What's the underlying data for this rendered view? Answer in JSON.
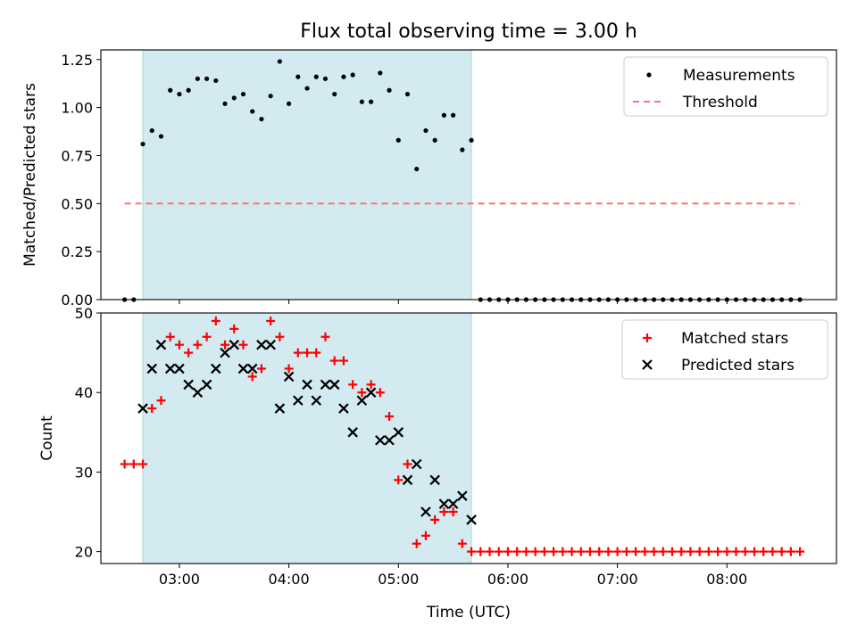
{
  "figure": {
    "title": "Flux total observing time = 3.00 h",
    "xlabel": "Time (UTC)"
  },
  "chart_data": [
    {
      "type": "scatter",
      "ylabel": "Matched/Predicted stars",
      "ylim": [
        0,
        1.3
      ],
      "yticks": [
        "0.00",
        "0.25",
        "0.50",
        "0.75",
        "1.00",
        "1.25"
      ],
      "xlim": [
        "02:17",
        "09:00"
      ],
      "xticks": [
        "03:00",
        "04:00",
        "05:00",
        "06:00",
        "07:00",
        "08:00"
      ],
      "shaded_interval": [
        "02:40",
        "05:40"
      ],
      "legend_location": "top-right",
      "series": [
        {
          "name": "Measurements",
          "marker": "dot",
          "color": "#000000",
          "x": [
            "02:30",
            "02:35",
            "02:40",
            "02:45",
            "02:50",
            "02:55",
            "03:00",
            "03:05",
            "03:10",
            "03:15",
            "03:20",
            "03:25",
            "03:30",
            "03:35",
            "03:40",
            "03:45",
            "03:50",
            "03:55",
            "04:00",
            "04:05",
            "04:10",
            "04:15",
            "04:20",
            "04:25",
            "04:30",
            "04:35",
            "04:40",
            "04:45",
            "04:50",
            "04:55",
            "05:00",
            "05:05",
            "05:10",
            "05:15",
            "05:20",
            "05:25",
            "05:30",
            "05:35",
            "05:40",
            "05:45",
            "05:50",
            "05:55",
            "06:00",
            "06:05",
            "06:10",
            "06:15",
            "06:20",
            "06:25",
            "06:30",
            "06:35",
            "06:40",
            "06:45",
            "06:50",
            "06:55",
            "07:00",
            "07:05",
            "07:10",
            "07:15",
            "07:20",
            "07:25",
            "07:30",
            "07:35",
            "07:40",
            "07:45",
            "07:50",
            "07:55",
            "08:00",
            "08:05",
            "08:10",
            "08:15",
            "08:20",
            "08:25",
            "08:30",
            "08:35",
            "08:40"
          ],
          "y": [
            0,
            0,
            0.81,
            0.88,
            0.85,
            1.09,
            1.07,
            1.09,
            1.15,
            1.15,
            1.14,
            1.02,
            1.05,
            1.07,
            0.98,
            0.94,
            1.06,
            1.24,
            1.02,
            1.16,
            1.1,
            1.16,
            1.15,
            1.07,
            1.16,
            1.17,
            1.03,
            1.03,
            1.18,
            1.09,
            0.83,
            1.07,
            0.68,
            0.88,
            0.83,
            0.96,
            0.96,
            0.78,
            0.83,
            0,
            0,
            0,
            0,
            0,
            0,
            0,
            0,
            0,
            0,
            0,
            0,
            0,
            0,
            0,
            0,
            0,
            0,
            0,
            0,
            0,
            0,
            0,
            0,
            0,
            0,
            0,
            0,
            0,
            0,
            0,
            0,
            0,
            0,
            0,
            0
          ]
        },
        {
          "name": "Threshold",
          "style": "dashed",
          "color": "#ff7070",
          "x": [
            "02:30",
            "08:40"
          ],
          "y": [
            0.5,
            0.5
          ]
        }
      ]
    },
    {
      "type": "scatter",
      "ylabel": "Count",
      "ylim": [
        18.5,
        50
      ],
      "yticks": [
        "20",
        "30",
        "40",
        "50"
      ],
      "xlim": [
        "02:17",
        "09:00"
      ],
      "xticks": [
        "03:00",
        "04:00",
        "05:00",
        "06:00",
        "07:00",
        "08:00"
      ],
      "shaded_interval": [
        "02:40",
        "05:40"
      ],
      "legend_location": "top-right",
      "series": [
        {
          "name": "Matched stars",
          "marker": "plus",
          "color": "#ff0000",
          "x": [
            "02:30",
            "02:35",
            "02:40",
            "02:45",
            "02:50",
            "02:55",
            "03:00",
            "03:05",
            "03:10",
            "03:15",
            "03:20",
            "03:25",
            "03:30",
            "03:35",
            "03:40",
            "03:45",
            "03:50",
            "03:55",
            "04:00",
            "04:05",
            "04:10",
            "04:15",
            "04:20",
            "04:25",
            "04:30",
            "04:35",
            "04:40",
            "04:45",
            "04:50",
            "04:55",
            "05:00",
            "05:05",
            "05:10",
            "05:15",
            "05:20",
            "05:25",
            "05:30",
            "05:35",
            "05:40",
            "05:45",
            "05:50",
            "05:55",
            "06:00",
            "06:05",
            "06:10",
            "06:15",
            "06:20",
            "06:25",
            "06:30",
            "06:35",
            "06:40",
            "06:45",
            "06:50",
            "06:55",
            "07:00",
            "07:05",
            "07:10",
            "07:15",
            "07:20",
            "07:25",
            "07:30",
            "07:35",
            "07:40",
            "07:45",
            "07:50",
            "07:55",
            "08:00",
            "08:05",
            "08:10",
            "08:15",
            "08:20",
            "08:25",
            "08:30",
            "08:35",
            "08:40"
          ],
          "y": [
            31,
            31,
            31,
            38,
            39,
            47,
            46,
            45,
            46,
            47,
            49,
            46,
            48,
            46,
            42,
            43,
            49,
            47,
            43,
            45,
            45,
            45,
            47,
            44,
            44,
            41,
            40,
            41,
            40,
            37,
            29,
            31,
            21,
            22,
            24,
            25,
            25,
            21,
            20,
            20,
            20,
            20,
            20,
            20,
            20,
            20,
            20,
            20,
            20,
            20,
            20,
            20,
            20,
            20,
            20,
            20,
            20,
            20,
            20,
            20,
            20,
            20,
            20,
            20,
            20,
            20,
            20,
            20,
            20,
            20,
            20,
            20,
            20,
            20,
            20
          ]
        },
        {
          "name": "Predicted stars",
          "marker": "x",
          "color": "#000000",
          "x": [
            "02:40",
            "02:45",
            "02:50",
            "02:55",
            "03:00",
            "03:05",
            "03:10",
            "03:15",
            "03:20",
            "03:25",
            "03:30",
            "03:35",
            "03:40",
            "03:45",
            "03:50",
            "03:55",
            "04:00",
            "04:05",
            "04:10",
            "04:15",
            "04:20",
            "04:25",
            "04:30",
            "04:35",
            "04:40",
            "04:45",
            "04:50",
            "04:55",
            "05:00",
            "05:05",
            "05:10",
            "05:15",
            "05:20",
            "05:25",
            "05:30",
            "05:35",
            "05:40"
          ],
          "y": [
            38,
            43,
            46,
            43,
            43,
            41,
            40,
            41,
            43,
            45,
            46,
            43,
            43,
            46,
            46,
            38,
            42,
            39,
            41,
            39,
            41,
            41,
            38,
            35,
            39,
            40,
            34,
            34,
            35,
            29,
            31,
            25,
            29,
            26,
            26,
            27,
            24
          ]
        }
      ]
    }
  ]
}
